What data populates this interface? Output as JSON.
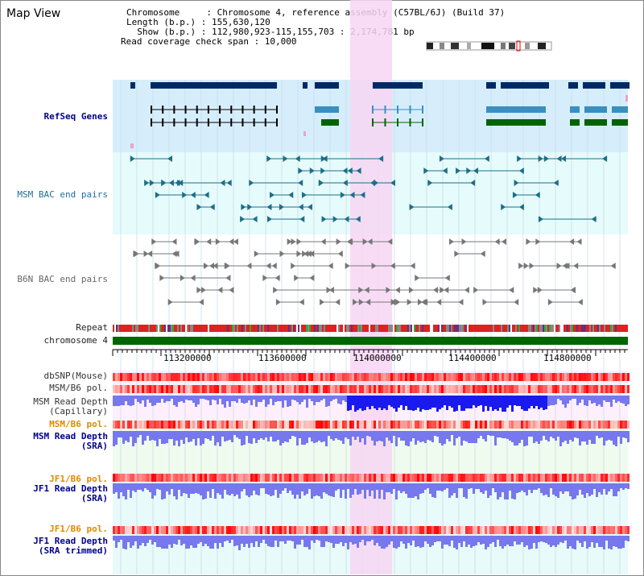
{
  "view_title": "Map View",
  "header": {
    "chromosome": "Chromosome     : Chromosome 4, reference assembly (C57BL/6J) (Build 37)",
    "length": "Length (b.p.) : 155,630,120",
    "show": "  Show (b.p.) : 112,980,923-115,155,703 : 2,174,781 bp",
    "coverage": "Read coverage check span : 10,000"
  },
  "tracks": {
    "refseq": "RefSeq Genes",
    "msm_bac": "MSM BAC end pairs",
    "b6n_bac": "B6N BAC end pairs",
    "repeat": "Repeat",
    "chromosome": "chromosome 4",
    "dbsnp": "dbSNP(Mouse)",
    "msm_b6_pol": "MSM/B6 pol.",
    "msm_read_depth_cap_1": "MSM Read Depth",
    "msm_read_depth_cap_2": "(Capillary)",
    "msm_b6_pol_sra": "MSM/B6 pol.",
    "msm_read_depth_sra_1": "MSM Read Depth",
    "msm_read_depth_sra_2": "(SRA)",
    "jf1_b6_pol_1": "JF1/B6 pol.",
    "jf1_read_depth_1": "JF1 Read Depth",
    "jf1_read_depth_2": "(SRA)",
    "jf1_b6_pol_2": "JF1/B6 pol.",
    "jf1_read_depth_trim_1": "JF1 Read Depth",
    "jf1_read_depth_trim_2": "(SRA trimmed)"
  },
  "axis_ticks": [
    "113200000",
    "113600000",
    "114000000",
    "114400000",
    "114800000"
  ],
  "colors": {
    "refseq_bg": "#d6eefb",
    "bac_bg": "#e6fbfb",
    "highlight": "#f7d6f3",
    "gene_dark": "#002a66",
    "gene_mid": "#3a8fbf",
    "gene_green": "#006400",
    "bac_teal": "#1b6f8a",
    "bac_gray": "#777777",
    "chrom_green": "#006600",
    "depth_blue": "#7777ee",
    "depth_strong": "#1a1aee"
  }
}
